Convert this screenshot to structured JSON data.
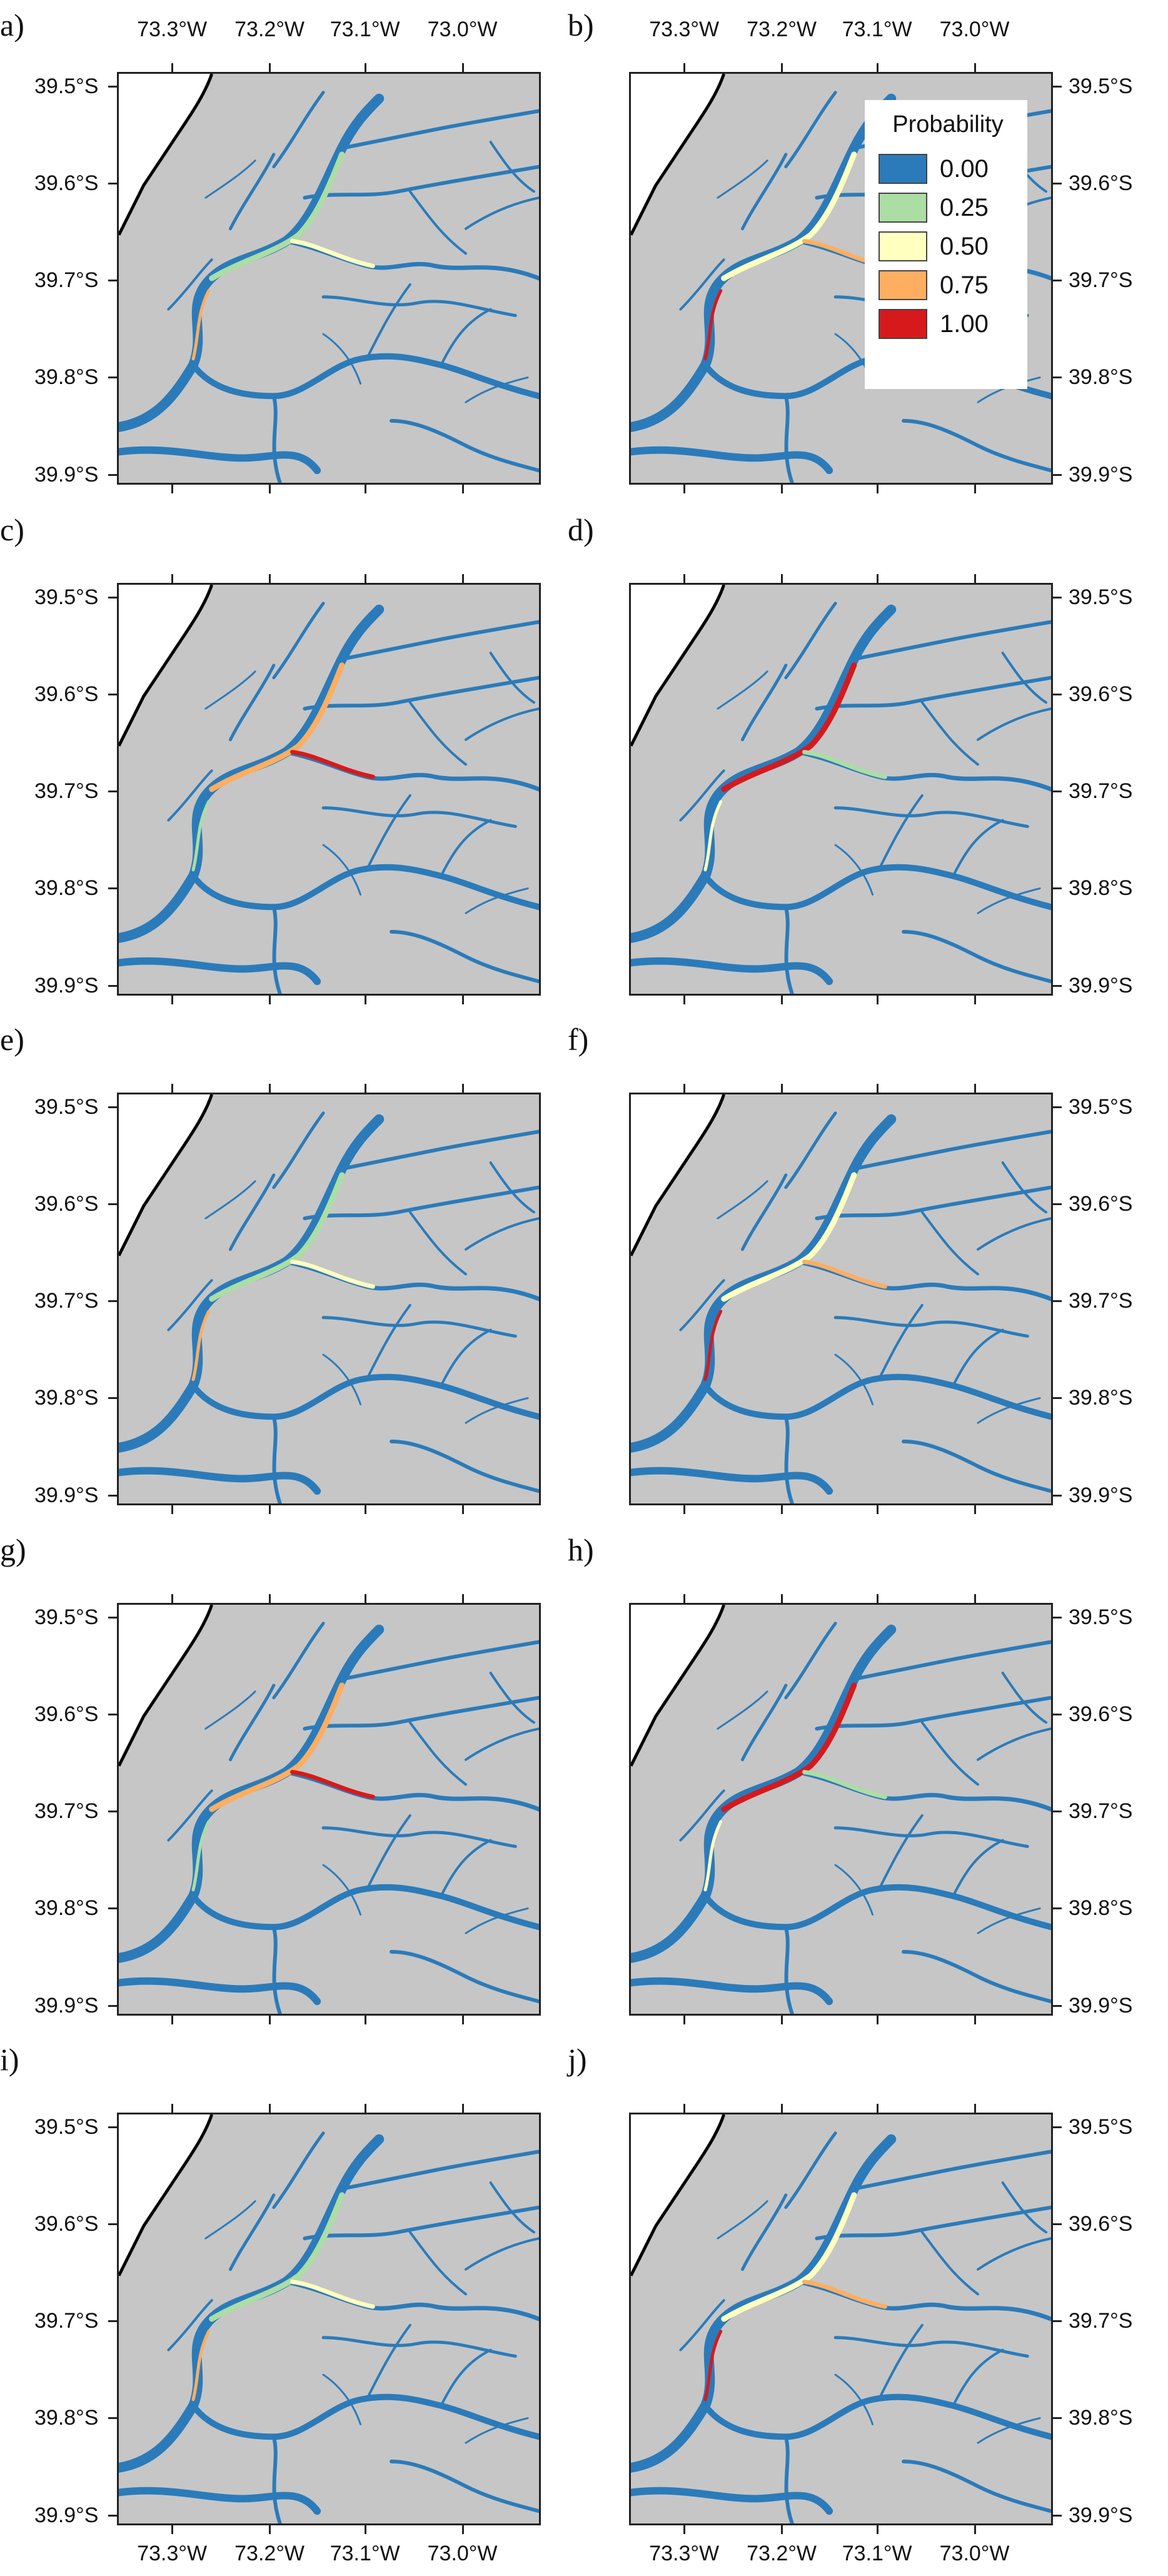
{
  "panels": [
    {
      "label": "a)",
      "side": "left",
      "row": 0
    },
    {
      "label": "b)",
      "side": "right",
      "row": 0
    },
    {
      "label": "c)",
      "side": "left",
      "row": 1
    },
    {
      "label": "d)",
      "side": "right",
      "row": 1
    },
    {
      "label": "e)",
      "side": "left",
      "row": 2
    },
    {
      "label": "f)",
      "side": "right",
      "row": 2
    },
    {
      "label": "g)",
      "side": "left",
      "row": 3
    },
    {
      "label": "h)",
      "side": "right",
      "row": 3
    },
    {
      "label": "i)",
      "side": "left",
      "row": 4
    },
    {
      "label": "j)",
      "side": "right",
      "row": 4
    }
  ],
  "lat_labels": [
    "39.5°S",
    "39.6°S",
    "39.7°S",
    "39.8°S",
    "39.9°S"
  ],
  "lon_labels": [
    "73.3°W",
    "73.2°W",
    "73.1°W",
    "73.0°W"
  ],
  "legend": {
    "title": "Probability",
    "items": [
      {
        "label": "0.00",
        "color": "#2b7bba"
      },
      {
        "label": "0.25",
        "color": "#abdda4"
      },
      {
        "label": "0.50",
        "color": "#ffffbf"
      },
      {
        "label": "0.75",
        "color": "#fdae61"
      },
      {
        "label": "1.00",
        "color": "#d7191c"
      }
    ]
  },
  "colors": {
    "land": "#c6c6c6",
    "water": "#2b7bba",
    "coastline": "#000000"
  }
}
